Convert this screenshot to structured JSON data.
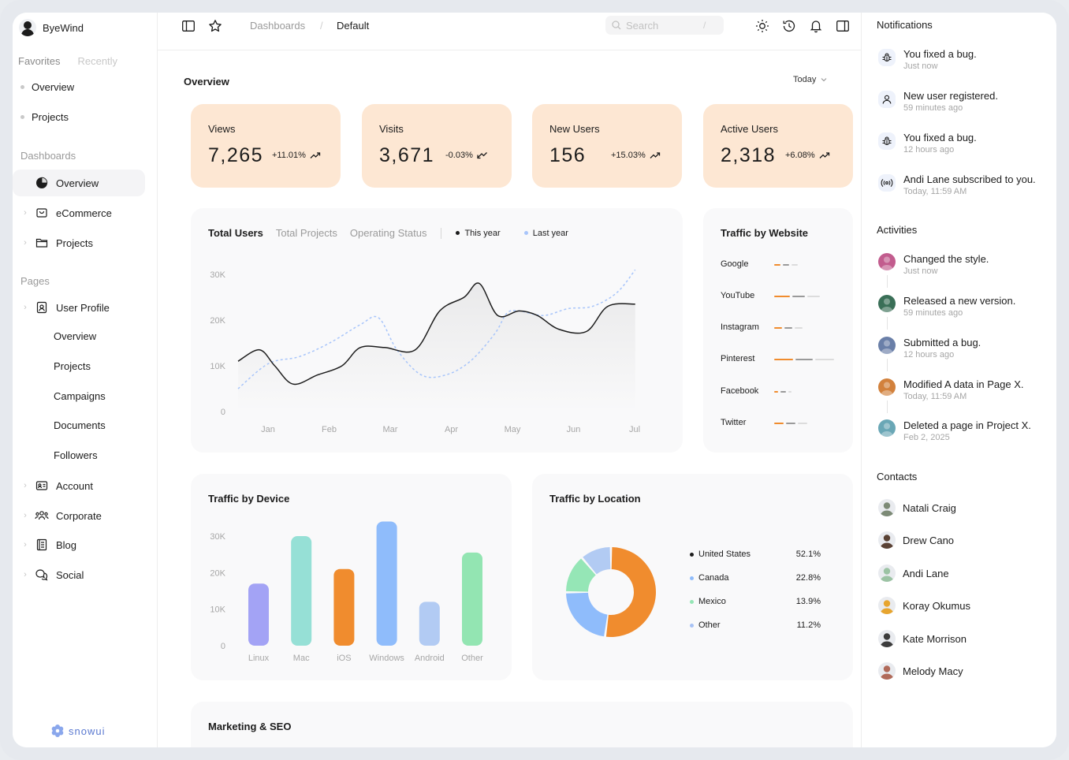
{
  "brand": {
    "name": "ByeWind"
  },
  "sidebar": {
    "fav_tabs": [
      "Favorites",
      "Recently"
    ],
    "favorites": [
      "Overview",
      "Projects"
    ],
    "dashboards_title": "Dashboards",
    "dashboards": [
      {
        "label": "Overview",
        "icon": "pie-chart-icon",
        "active": true
      },
      {
        "label": "eCommerce",
        "icon": "shopping-bag-icon"
      },
      {
        "label": "Projects",
        "icon": "folder-icon"
      }
    ],
    "pages_title": "Pages",
    "user_profile": {
      "label": "User Profile",
      "icon": "id-badge-icon"
    },
    "user_profile_children": [
      "Overview",
      "Projects",
      "Campaigns",
      "Documents",
      "Followers"
    ],
    "pages": [
      {
        "label": "Account",
        "icon": "id-card-icon"
      },
      {
        "label": "Corporate",
        "icon": "users-icon"
      },
      {
        "label": "Blog",
        "icon": "notebook-icon"
      },
      {
        "label": "Social",
        "icon": "chat-bubbles-icon"
      }
    ],
    "footer_logo": "snowui"
  },
  "topbar": {
    "breadcrumb": [
      "Dashboards",
      "Default"
    ],
    "breadcrumb_sep": "/",
    "search_placeholder": "Search",
    "search_shortcut": "/"
  },
  "main": {
    "title": "Overview",
    "range": "Today",
    "stats": [
      {
        "label": "Views",
        "value": "7,265",
        "change": "+11.01%",
        "trend": "up"
      },
      {
        "label": "Visits",
        "value": "3,671",
        "change": "-0.03%",
        "trend": "down"
      },
      {
        "label": "New Users",
        "value": "156",
        "change": "+15.03%",
        "trend": "up"
      },
      {
        "label": "Active Users",
        "value": "2,318",
        "change": "+6.08%",
        "trend": "up"
      }
    ],
    "users_tabs": [
      "Total Users",
      "Total Projects",
      "Operating Status"
    ],
    "users_legend": [
      "This year",
      "Last year"
    ],
    "traffic_website_title": "Traffic by Website",
    "traffic_device_title": "Traffic by Device",
    "traffic_location_title": "Traffic by Location",
    "marketing_title": "Marketing & SEO"
  },
  "chart_data": [
    {
      "type": "line",
      "title": "Total Users",
      "x": [
        "Jan",
        "Feb",
        "Mar",
        "Apr",
        "May",
        "Jun",
        "Jul"
      ],
      "yticks": [
        "0",
        "10K",
        "20K",
        "30K"
      ],
      "ylim": [
        0,
        30000
      ],
      "series": [
        {
          "name": "This year",
          "color": "#1c1c1c",
          "x": [
            0.0,
            0.35,
            0.6,
            0.9,
            1.3,
            1.7,
            2.0,
            2.4,
            2.9,
            3.3,
            3.7,
            3.95,
            4.25,
            4.6,
            4.9,
            5.25,
            5.7,
            6.05,
            6.5
          ],
          "values": [
            11000,
            13500,
            10000,
            6000,
            8000,
            10000,
            14000,
            14000,
            13500,
            22000,
            25000,
            28000,
            21000,
            22000,
            21000,
            18000,
            17500,
            23000,
            23500
          ]
        },
        {
          "name": "Last year",
          "color": "#a8c5fa",
          "x": [
            0.0,
            0.5,
            1.0,
            1.5,
            2.0,
            2.3,
            2.6,
            3.0,
            3.4,
            3.8,
            4.2,
            4.4,
            4.6,
            5.0,
            5.4,
            5.8,
            6.2,
            6.5
          ],
          "values": [
            5000,
            10500,
            12000,
            15000,
            19000,
            20500,
            13500,
            8000,
            8000,
            11000,
            17000,
            21500,
            22000,
            21000,
            22500,
            23000,
            26000,
            31000
          ]
        }
      ]
    },
    {
      "type": "bar",
      "title": "Traffic by Website",
      "categories": [
        "Google",
        "YouTube",
        "Instagram",
        "Pinterest",
        "Facebook",
        "Twitter"
      ],
      "series": [
        {
          "color": "#f08c2e",
          "values": [
            8,
            20,
            10,
            24,
            5,
            12
          ]
        },
        {
          "color": "#9a9a9a",
          "values": [
            8,
            16,
            10,
            22,
            7,
            12
          ]
        },
        {
          "color": "#dcdcdc",
          "values": [
            8,
            16,
            10,
            24,
            4,
            12
          ]
        }
      ]
    },
    {
      "type": "bar",
      "title": "Traffic by Device",
      "categories": [
        "Linux",
        "Mac",
        "iOS",
        "Windows",
        "Android",
        "Other"
      ],
      "values": [
        17000,
        30000,
        21000,
        34000,
        12000,
        25500
      ],
      "colors": [
        "#a3a3f5",
        "#96e0d6",
        "#f08c2e",
        "#8fbcfb",
        "#b2cbf3",
        "#93e5b2"
      ],
      "yticks": [
        "0",
        "10K",
        "20K",
        "30K"
      ],
      "ylim": [
        0,
        30000
      ]
    },
    {
      "type": "pie",
      "title": "Traffic by Location",
      "labels": [
        "United States",
        "Canada",
        "Mexico",
        "Other"
      ],
      "values": [
        52.1,
        22.8,
        13.9,
        11.2
      ],
      "display": [
        "52.1%",
        "22.8%",
        "13.9%",
        "11.2%"
      ],
      "colors": [
        "#f08c2e",
        "#8fbcfb",
        "#95e6b6",
        "#b2cbf3"
      ],
      "legend_colors": [
        "#1c1c1c",
        "#8fbcfb",
        "#95e6b6",
        "#a8c2f5"
      ]
    }
  ],
  "notifications": {
    "title": "Notifications",
    "items": [
      {
        "text": "You fixed a bug.",
        "time": "Just now",
        "icon": "bug-icon"
      },
      {
        "text": "New user registered.",
        "time": "59 minutes ago",
        "icon": "user-icon"
      },
      {
        "text": "You fixed a bug.",
        "time": "12 hours ago",
        "icon": "bug-icon"
      },
      {
        "text": "Andi Lane subscribed to you.",
        "time": "Today, 11:59 AM",
        "icon": "broadcast-icon"
      }
    ]
  },
  "activities": {
    "title": "Activities",
    "items": [
      {
        "text": "Changed the style.",
        "time": "Just now",
        "color": "#c25c8e"
      },
      {
        "text": "Released a new version.",
        "time": "59 minutes ago",
        "color": "#3a6f57"
      },
      {
        "text": "Submitted a bug.",
        "time": "12 hours ago",
        "color": "#6a7fa8"
      },
      {
        "text": "Modified A data in Page X.",
        "time": "Today, 11:59 AM",
        "color": "#d2813c"
      },
      {
        "text": "Deleted a page in Project X.",
        "time": "Feb 2, 2025",
        "color": "#6aa7b6"
      }
    ]
  },
  "contacts": {
    "title": "Contacts",
    "items": [
      {
        "name": "Natali Craig",
        "color": "#7c8a76"
      },
      {
        "name": "Drew Cano",
        "color": "#5a4235"
      },
      {
        "name": "Andi Lane",
        "color": "#9cc3a4"
      },
      {
        "name": "Koray Okumus",
        "color": "#e7a52f"
      },
      {
        "name": "Kate Morrison",
        "color": "#3c3c3c"
      },
      {
        "name": "Melody Macy",
        "color": "#b06a5a"
      }
    ]
  }
}
